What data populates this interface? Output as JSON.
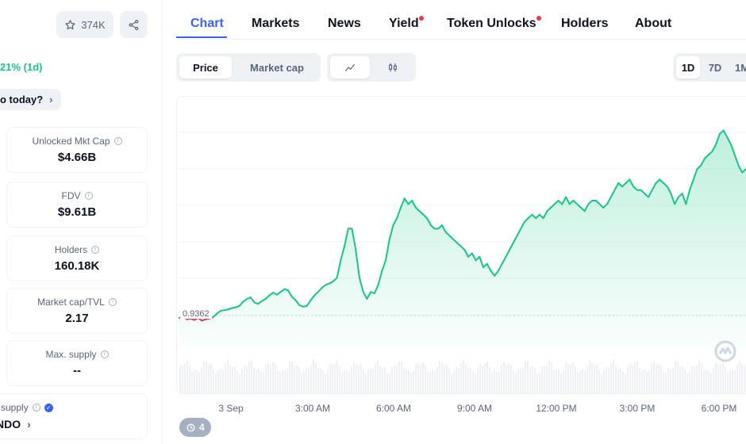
{
  "header": {
    "watchlist_count": "374K"
  },
  "price_change": {
    "text": "21% (1d)"
  },
  "why_button": {
    "label": "o today?"
  },
  "stats": [
    {
      "label": "Unlocked Mkt Cap",
      "value": "$4.66B"
    },
    {
      "label": "FDV",
      "value": "$9.61B"
    },
    {
      "label": "Holders",
      "value": "160.18K"
    },
    {
      "label": "Market cap/TVL",
      "value": "2.17"
    },
    {
      "label": "Max. supply",
      "value": "--"
    }
  ],
  "supply": {
    "label": "supply",
    "value": "NDO"
  },
  "tabs": [
    {
      "label": "Chart",
      "active": true
    },
    {
      "label": "Markets"
    },
    {
      "label": "News"
    },
    {
      "label": "Yield",
      "dot": true
    },
    {
      "label": "Token Unlocks",
      "dot": true
    },
    {
      "label": "Holders"
    },
    {
      "label": "About"
    }
  ],
  "controls": {
    "price_label": "Price",
    "market_cap_label": "Market cap",
    "ranges": [
      "1D",
      "7D",
      "1M"
    ]
  },
  "chart_data": {
    "type": "line",
    "reference_price": "0.9362",
    "x_ticks": [
      "3 Sep",
      "3:00 AM",
      "6:00 AM",
      "9:00 AM",
      "12:00 PM",
      "3:00 PM",
      "6:00 PM"
    ],
    "series": [
      {
        "values": [
          0.933,
          0.935,
          0.931,
          0.932,
          0.93,
          0.933,
          0.929,
          0.931,
          0.932,
          0.934,
          0.939,
          0.943,
          0.944,
          0.945,
          0.947,
          0.948,
          0.95,
          0.956,
          0.96,
          0.962,
          0.955,
          0.953,
          0.957,
          0.96,
          0.965,
          0.969,
          0.966,
          0.97,
          0.974,
          0.972,
          0.963,
          0.958,
          0.951,
          0.949,
          0.95,
          0.958,
          0.965,
          0.97,
          0.976,
          0.98,
          0.982,
          0.985,
          0.99,
          1.015,
          1.035,
          1.06,
          1.06,
          1.03,
          0.99,
          0.97,
          0.96,
          0.97,
          0.968,
          0.98,
          1.0,
          1.015,
          1.045,
          1.065,
          1.075,
          1.09,
          1.103,
          1.095,
          1.1,
          1.09,
          1.085,
          1.08,
          1.075,
          1.065,
          1.06,
          1.06,
          1.065,
          1.055,
          1.05,
          1.045,
          1.04,
          1.035,
          1.03,
          1.02,
          1.025,
          1.015,
          1.02,
          1.005,
          1.01,
          1.0,
          0.993,
          1.0,
          1.01,
          1.02,
          1.03,
          1.04,
          1.05,
          1.06,
          1.07,
          1.075,
          1.08,
          1.075,
          1.08,
          1.075,
          1.085,
          1.09,
          1.095,
          1.1,
          1.095,
          1.105,
          1.095,
          1.1,
          1.095,
          1.09,
          1.085,
          1.095,
          1.1,
          1.1,
          1.095,
          1.09,
          1.095,
          1.105,
          1.115,
          1.125,
          1.12,
          1.125,
          1.13,
          1.12,
          1.115,
          1.115,
          1.11,
          1.105,
          1.115,
          1.125,
          1.13,
          1.125,
          1.12,
          1.11,
          1.095,
          1.105,
          1.11,
          1.095,
          1.115,
          1.13,
          1.145,
          1.15,
          1.16,
          1.165,
          1.17,
          1.18,
          1.195,
          1.2,
          1.19,
          1.18,
          1.165,
          1.15,
          1.14,
          1.145
        ]
      }
    ],
    "y_range": [
      0.89,
      1.24
    ],
    "grid": true
  }
}
